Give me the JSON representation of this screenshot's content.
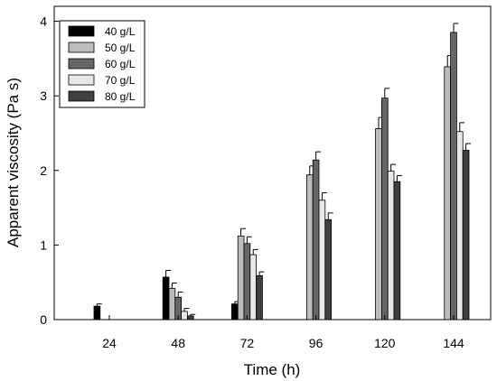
{
  "chart_data": {
    "type": "bar",
    "xlabel": "Time (h)",
    "ylabel": "Apparent viscosity (Pa s)",
    "ylim": [
      0,
      4.2
    ],
    "yticks": [
      0,
      1,
      2,
      3,
      4
    ],
    "categories": [
      "24",
      "48",
      "72",
      "96",
      "120",
      "144"
    ],
    "legend_position": "top-left",
    "grid": false,
    "series": [
      {
        "name": "40 g/L",
        "color": "#000000",
        "values": [
          0.18,
          0.57,
          0.21,
          0,
          0,
          0
        ],
        "errors": [
          0.03,
          0.09,
          0.03,
          0,
          0,
          0
        ]
      },
      {
        "name": "50 g/L",
        "color": "#bcbcbc",
        "values": [
          0,
          0.42,
          1.12,
          1.94,
          2.56,
          3.39
        ],
        "errors": [
          0,
          0.07,
          0.1,
          0.12,
          0.15,
          0.15
        ]
      },
      {
        "name": "60 g/L",
        "color": "#666666",
        "values": [
          0,
          0.3,
          1.02,
          2.14,
          2.97,
          3.85
        ],
        "errors": [
          0,
          0.07,
          0.09,
          0.11,
          0.13,
          0.12
        ]
      },
      {
        "name": "70 g/L",
        "color": "#e8e8e8",
        "values": [
          0,
          0.11,
          0.87,
          1.6,
          1.99,
          2.52
        ],
        "errors": [
          0,
          0.04,
          0.07,
          0.1,
          0.09,
          0.12
        ]
      },
      {
        "name": "80 g/L",
        "color": "#404040",
        "values": [
          0,
          0.05,
          0.59,
          1.34,
          1.85,
          2.27
        ],
        "errors": [
          0,
          0.02,
          0.05,
          0.09,
          0.08,
          0.09
        ]
      }
    ]
  }
}
